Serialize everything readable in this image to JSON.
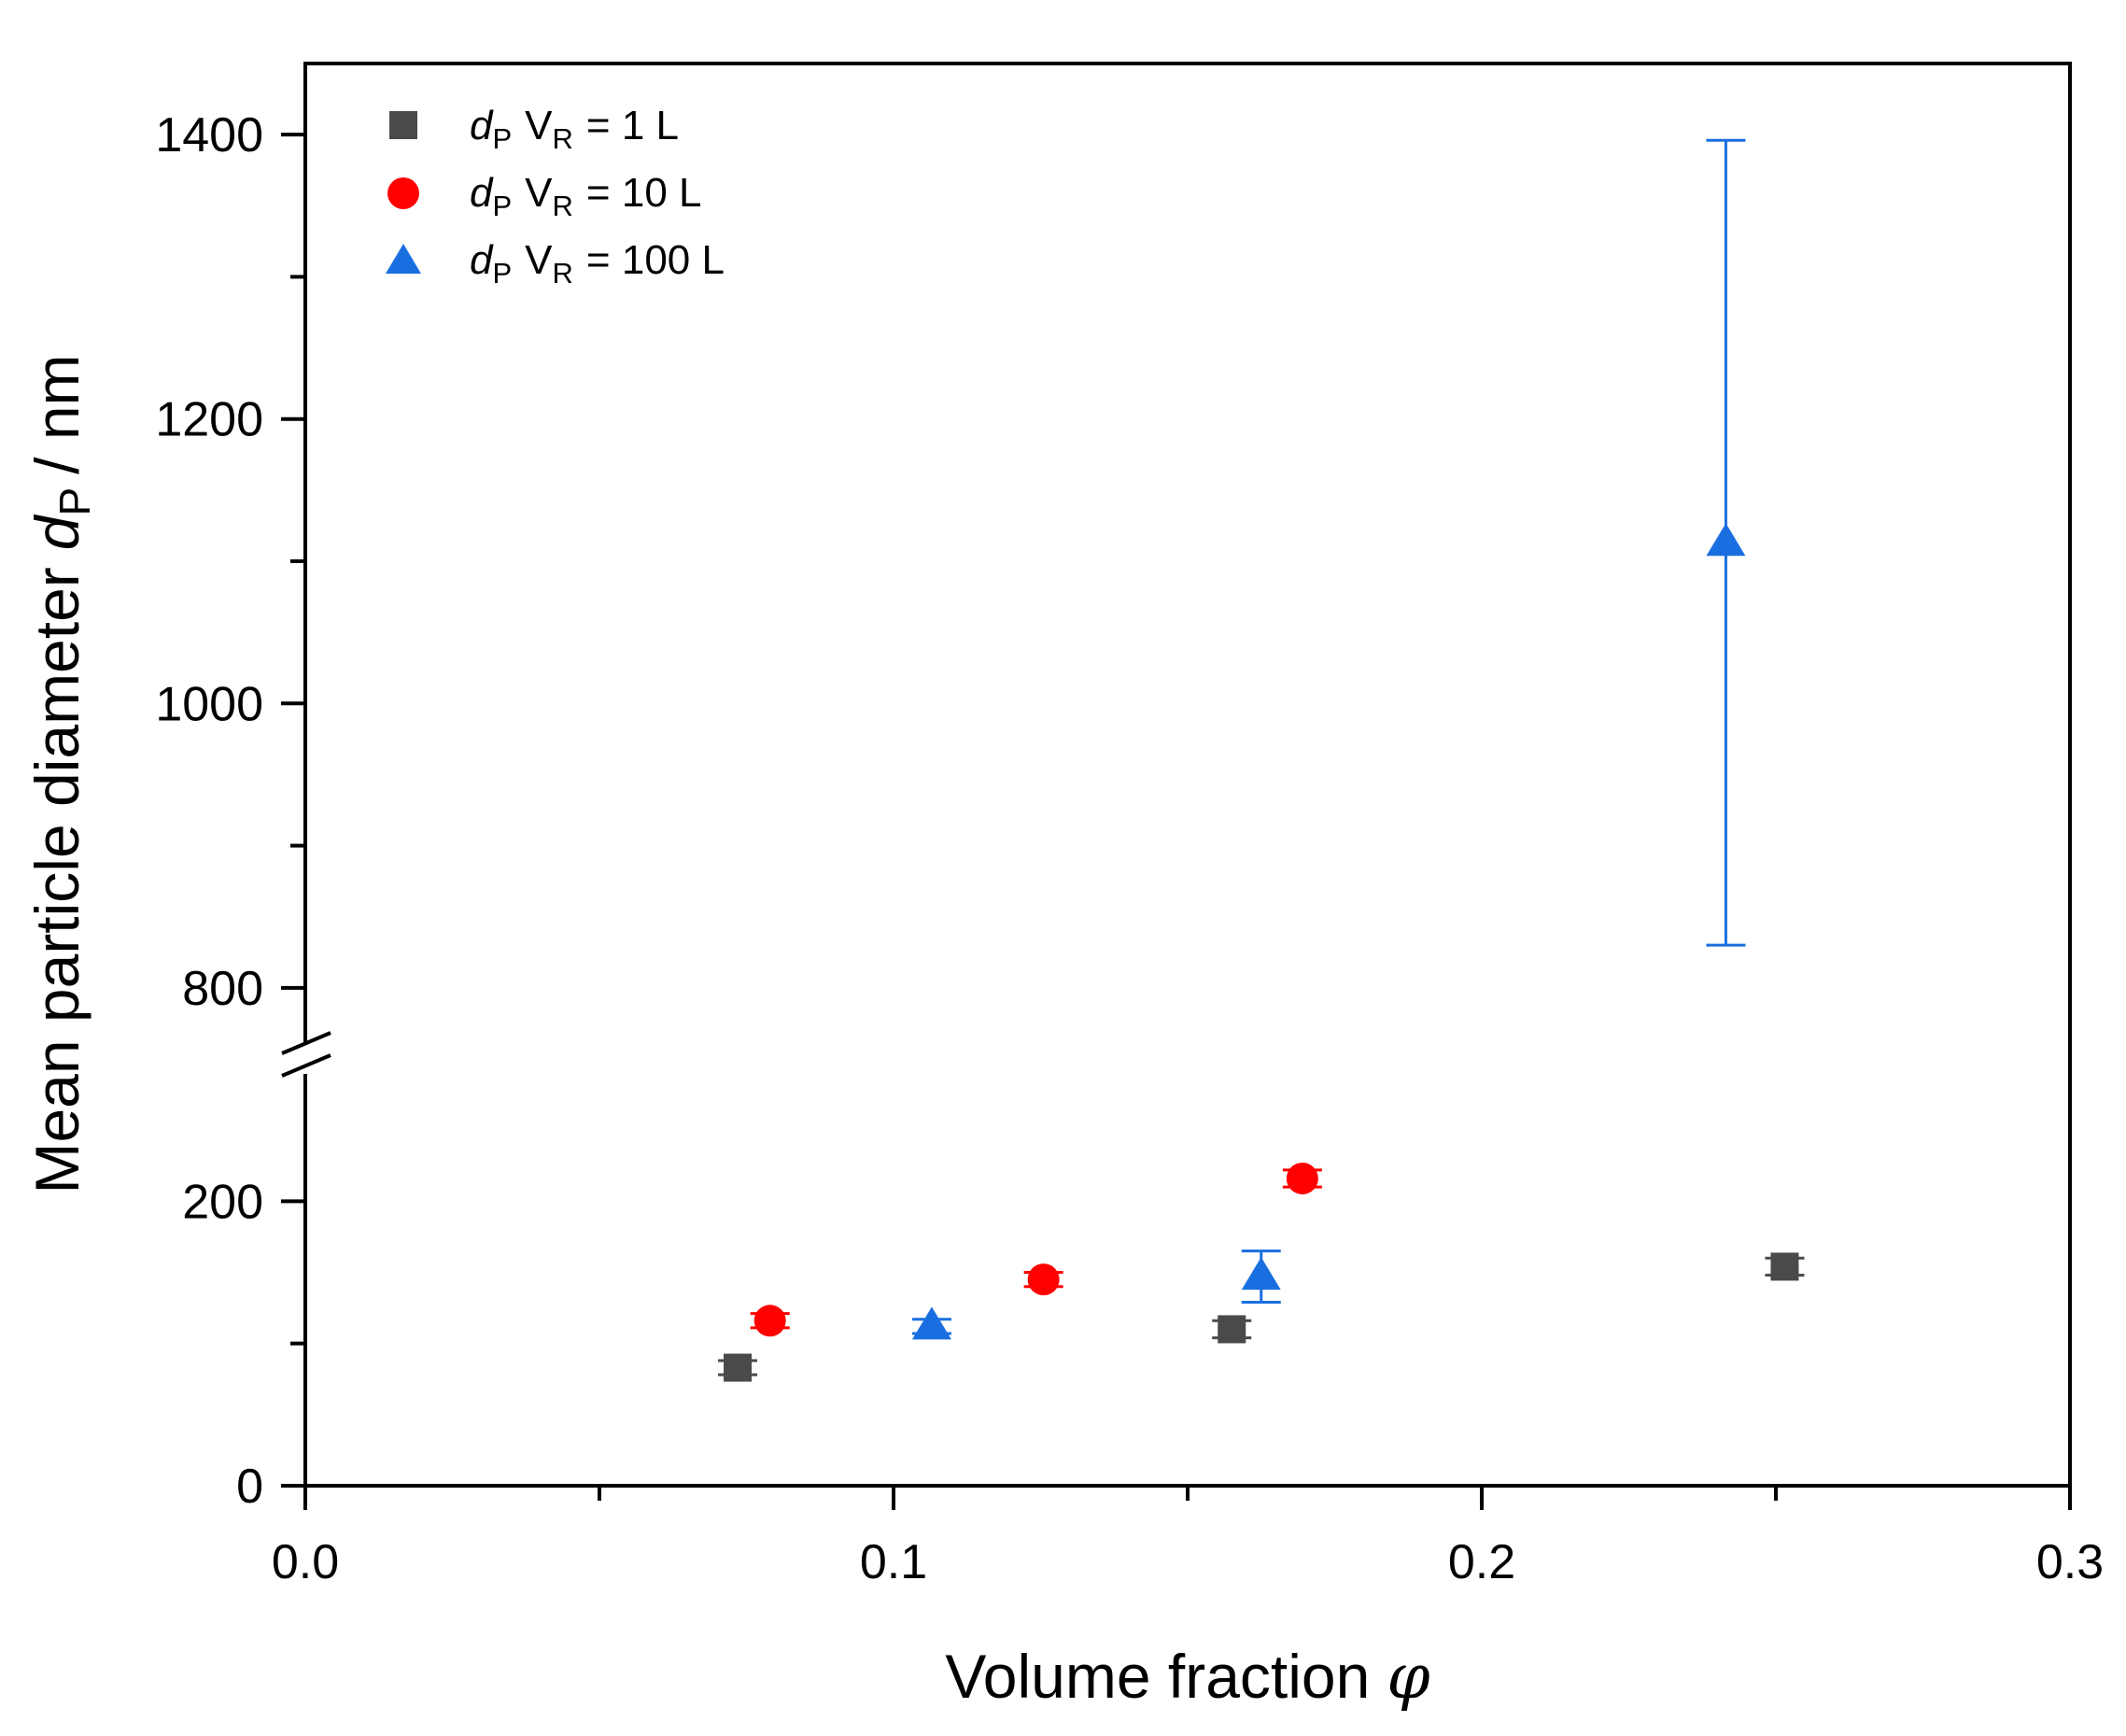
{
  "chart_data": {
    "type": "scatter",
    "title": "",
    "xlabel": "Volume fraction",
    "xlabel_symbol": "φ",
    "ylabel": "Mean particle diameter",
    "ylabel_symbol": "d",
    "ylabel_subscript": "P",
    "ylabel_unit": "/ nm",
    "xlim": [
      0.0,
      0.3
    ],
    "ylim": [
      0,
      1450
    ],
    "y_axis_break": {
      "lower_range": [
        0,
        300
      ],
      "upper_range": [
        750,
        1450
      ]
    },
    "x_ticks": [
      0.0,
      0.1,
      0.2,
      0.3
    ],
    "x_tick_labels": [
      "0.0",
      "0.1",
      "0.2",
      "0.3"
    ],
    "y_ticks": [
      0,
      200,
      800,
      1000,
      1200,
      1400
    ],
    "y_tick_labels": [
      "0",
      "200",
      "800",
      "1000",
      "1200",
      "1400"
    ],
    "legend_position": "top-left",
    "series": [
      {
        "name": "dP VR = 1 L",
        "legend_symbol": "d",
        "legend_symbol_sub": "P",
        "legend_var": "V",
        "legend_var_sub": "R",
        "legend_value": "= 1 L",
        "marker": "square",
        "color": "#4a4a4a",
        "points": [
          {
            "x": 0.0735,
            "y": 83,
            "err": 5
          },
          {
            "x": 0.1575,
            "y": 110,
            "err": 6
          },
          {
            "x": 0.2515,
            "y": 154,
            "err": 6
          }
        ]
      },
      {
        "name": "dP VR = 10 L",
        "legend_symbol": "d",
        "legend_symbol_sub": "P",
        "legend_var": "V",
        "legend_var_sub": "R",
        "legend_value": "= 10 L",
        "marker": "circle",
        "color": "#ff0000",
        "points": [
          {
            "x": 0.079,
            "y": 116,
            "err": 5
          },
          {
            "x": 0.1255,
            "y": 145,
            "err": 5
          },
          {
            "x": 0.1695,
            "y": 216,
            "err": 6
          }
        ]
      },
      {
        "name": "dP VR = 100 L",
        "legend_symbol": "d",
        "legend_symbol_sub": "P",
        "legend_var": "V",
        "legend_var_sub": "R",
        "legend_value": "= 100 L",
        "marker": "triangle",
        "color": "#1a6fe0",
        "points": [
          {
            "x": 0.1065,
            "y": 112,
            "err": 5
          },
          {
            "x": 0.1625,
            "y": 147,
            "err": 18
          },
          {
            "x": 0.2415,
            "y": 1113,
            "err": 283
          }
        ]
      }
    ]
  }
}
